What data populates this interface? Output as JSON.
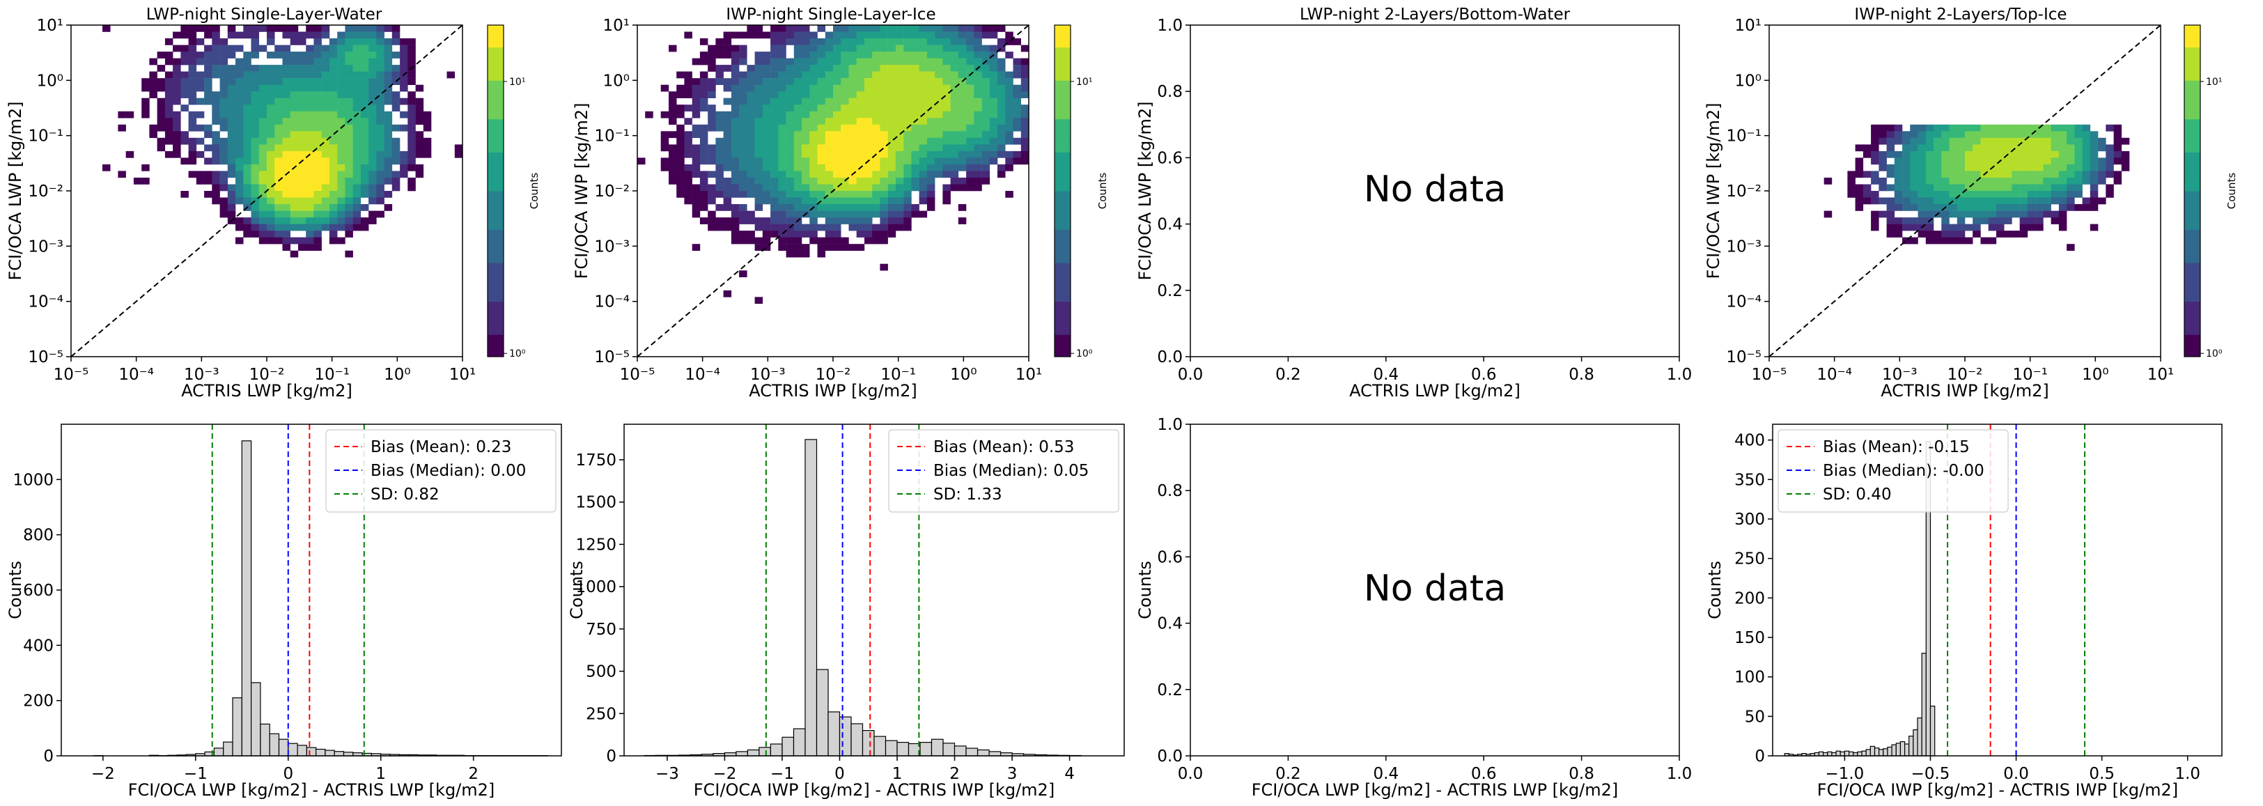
{
  "figure": {
    "background": "#ffffff"
  },
  "colors": {
    "viridis": [
      "#440154",
      "#482878",
      "#3e4989",
      "#31688e",
      "#26828e",
      "#1f9e89",
      "#35b779",
      "#6ece58",
      "#b5de2b",
      "#fde725"
    ],
    "hist_fill": "#d3d3d3",
    "mean_line": "#ff0000",
    "median_line": "#0000ff",
    "sd_line": "#008000",
    "diagonal": "#000000"
  },
  "chart_data": [
    {
      "id": "scatter1",
      "type": "heatmap",
      "scale": "log",
      "title": "LWP-night Single-Layer-Water",
      "xlabel": "ACTRIS LWP [kg/m2]",
      "ylabel": "FCI/OCA LWP [kg/m2]",
      "xlim": [
        1e-05,
        10
      ],
      "ylim": [
        1e-05,
        10
      ],
      "xticks": [
        "10⁻⁵",
        "10⁻⁴",
        "10⁻³",
        "10⁻²",
        "10⁻¹",
        "10⁰",
        "10¹"
      ],
      "yticks": [
        "10⁻⁵",
        "10⁻⁴",
        "10⁻³",
        "10⁻²",
        "10⁻¹",
        "10⁰",
        "10¹"
      ],
      "colorbar": {
        "label": "Counts",
        "ticks": [
          "10¹",
          "10⁰"
        ],
        "range": [
          1,
          20
        ]
      },
      "diagonal": true,
      "clusters": [
        {
          "x": 0.03,
          "y": 0.015,
          "peak": 20,
          "spread": 0.45
        },
        {
          "x": 0.08,
          "y": 0.1,
          "peak": 9,
          "spread": 0.7
        },
        {
          "x": 0.3,
          "y": 3.0,
          "peak": 6,
          "spread": 0.35
        },
        {
          "x": 0.005,
          "y": 0.5,
          "peak": 3,
          "spread": 0.9
        }
      ],
      "no_data": false
    },
    {
      "id": "scatter2",
      "type": "heatmap",
      "scale": "log",
      "title": "IWP-night Single-Layer-Ice",
      "xlabel": "ACTRIS IWP [kg/m2]",
      "ylabel": "FCI/OCA IWP [kg/m2]",
      "xlim": [
        1e-05,
        10
      ],
      "ylim": [
        1e-05,
        10
      ],
      "xticks": [
        "10⁻⁵",
        "10⁻⁴",
        "10⁻³",
        "10⁻²",
        "10⁻¹",
        "10⁰",
        "10¹"
      ],
      "yticks": [
        "10⁻⁵",
        "10⁻⁴",
        "10⁻³",
        "10⁻²",
        "10⁻¹",
        "10⁰",
        "10¹"
      ],
      "colorbar": {
        "label": "Counts",
        "ticks": [
          "10¹",
          "10⁰"
        ],
        "range": [
          1,
          25
        ]
      },
      "diagonal": true,
      "clusters": [
        {
          "x": 0.02,
          "y": 0.04,
          "peak": 25,
          "spread": 0.5
        },
        {
          "x": 0.1,
          "y": 0.8,
          "peak": 15,
          "spread": 0.7
        },
        {
          "x": 0.003,
          "y": 0.1,
          "peak": 6,
          "spread": 1.0
        },
        {
          "x": 1.0,
          "y": 0.3,
          "peak": 8,
          "spread": 0.6
        }
      ],
      "no_data": false
    },
    {
      "id": "scatter3",
      "type": "scatter",
      "title": "LWP-night 2-Layers/Bottom-Water",
      "xlabel": "ACTRIS LWP [kg/m2]",
      "ylabel": "FCI/OCA LWP [kg/m2]",
      "xlim": [
        0,
        1
      ],
      "ylim": [
        0,
        1
      ],
      "xticks": [
        "0.0",
        "0.2",
        "0.4",
        "0.6",
        "0.8",
        "1.0"
      ],
      "yticks": [
        "0.0",
        "0.2",
        "0.4",
        "0.6",
        "0.8",
        "1.0"
      ],
      "no_data": true,
      "no_data_text": "No data"
    },
    {
      "id": "scatter4",
      "type": "heatmap",
      "scale": "log",
      "title": "IWP-night 2-Layers/Top-Ice",
      "xlabel": "ACTRIS IWP [kg/m2]",
      "ylabel": "FCI/OCA IWP [kg/m2]",
      "xlim": [
        1e-05,
        10
      ],
      "ylim": [
        1e-05,
        10
      ],
      "xticks": [
        "10⁻⁵",
        "10⁻⁴",
        "10⁻³",
        "10⁻²",
        "10⁻¹",
        "10⁰",
        "10¹"
      ],
      "yticks": [
        "10⁻⁵",
        "10⁻⁴",
        "10⁻³",
        "10⁻²",
        "10⁻¹",
        "10⁰",
        "10¹"
      ],
      "colorbar": {
        "label": "Counts",
        "ticks": [
          "10¹",
          "10⁰"
        ],
        "range": [
          1,
          20
        ]
      },
      "diagonal": true,
      "clusters": [
        {
          "x": 0.02,
          "y": 0.04,
          "peak": 12,
          "spread": 0.6
        },
        {
          "x": 0.2,
          "y": 0.05,
          "peak": 10,
          "spread": 0.5
        },
        {
          "x": 0.002,
          "y": 0.015,
          "peak": 3,
          "spread": 0.6
        }
      ],
      "y_max": 0.15,
      "no_data": false
    },
    {
      "id": "hist1",
      "type": "bar",
      "xlabel": "FCI/OCA LWP [kg/m2] - ACTRIS LWP [kg/m2]",
      "ylabel": "Counts",
      "xlim": [
        -2.45,
        2.95
      ],
      "ylim": [
        0,
        1200
      ],
      "xticks": [
        -2,
        -1,
        0,
        1,
        2
      ],
      "yticks": [
        0,
        200,
        400,
        600,
        800,
        1000
      ],
      "bin_start": -2.1,
      "bin_width": 0.1,
      "counts": [
        1,
        0,
        0,
        0,
        0,
        0,
        2,
        1,
        2,
        3,
        5,
        8,
        14,
        28,
        50,
        210,
        1140,
        265,
        115,
        80,
        60,
        45,
        38,
        30,
        24,
        20,
        16,
        13,
        11,
        9,
        8,
        6,
        5,
        4,
        4,
        3,
        3,
        2,
        2,
        2,
        1,
        1,
        1,
        1,
        1,
        1,
        1,
        1,
        1
      ],
      "mean": 0.23,
      "median": 0.0,
      "sd": 0.82,
      "legend": [
        "Bias (Mean): 0.23",
        "Bias (Median): 0.00",
        "SD: 0.82"
      ],
      "legend_position": "upper right"
    },
    {
      "id": "hist2",
      "type": "bar",
      "xlabel": "FCI/OCA IWP [kg/m2] - ACTRIS IWP [kg/m2]",
      "ylabel": "Counts",
      "xlim": [
        -3.75,
        4.95
      ],
      "ylim": [
        0,
        1960
      ],
      "xticks": [
        -3,
        -2,
        -1,
        0,
        1,
        2,
        3,
        4
      ],
      "yticks": [
        0,
        250,
        500,
        750,
        1000,
        1250,
        1500,
        1750
      ],
      "bin_start": -3.4,
      "bin_width": 0.2,
      "counts": [
        2,
        3,
        3,
        4,
        6,
        10,
        14,
        18,
        25,
        35,
        50,
        70,
        110,
        160,
        1870,
        510,
        260,
        230,
        190,
        150,
        115,
        90,
        80,
        72,
        80,
        98,
        75,
        58,
        45,
        35,
        25,
        18,
        13,
        9,
        6,
        4,
        3,
        2
      ],
      "mean": 0.53,
      "median": 0.05,
      "sd": 1.33,
      "legend": [
        "Bias (Mean): 0.53",
        "Bias (Median): 0.05",
        "SD: 1.33"
      ],
      "legend_position": "upper right"
    },
    {
      "id": "hist3",
      "type": "scatter",
      "xlabel": "FCI/OCA LWP [kg/m2] - ACTRIS LWP [kg/m2]",
      "ylabel": "Counts",
      "xlim": [
        0,
        1
      ],
      "ylim": [
        0,
        1
      ],
      "xticks": [
        "0.0",
        "0.2",
        "0.4",
        "0.6",
        "0.8",
        "1.0"
      ],
      "yticks": [
        "0.0",
        "0.2",
        "0.4",
        "0.6",
        "0.8",
        "1.0"
      ],
      "no_data": true,
      "no_data_text": "No data"
    },
    {
      "id": "hist4",
      "type": "bar",
      "xlabel": "FCI/OCA IWP [kg/m2] - ACTRIS IWP [kg/m2]",
      "ylabel": "Counts",
      "xlim": [
        -1.42,
        1.2
      ],
      "ylim": [
        0,
        420
      ],
      "xticks": [
        "-1.0",
        "-0.5",
        "0.0",
        "0.5",
        "1.0"
      ],
      "ytick_vals": [
        0,
        50,
        100,
        150,
        200,
        250,
        300,
        350,
        400
      ],
      "bin_start": -1.35,
      "bin_width": 0.025,
      "counts": [
        3,
        2,
        1,
        2,
        3,
        2,
        3,
        4,
        5,
        4,
        5,
        4,
        6,
        5,
        6,
        5,
        4,
        5,
        6,
        8,
        12,
        10,
        8,
        9,
        11,
        14,
        16,
        18,
        15,
        25,
        33,
        48,
        130,
        398,
        63
      ],
      "mean": -0.15,
      "median": -0.0,
      "sd": 0.4,
      "legend": [
        "Bias (Mean): -0.15",
        "Bias (Median): -0.00",
        "SD: 0.40"
      ],
      "legend_position": "upper left"
    }
  ]
}
